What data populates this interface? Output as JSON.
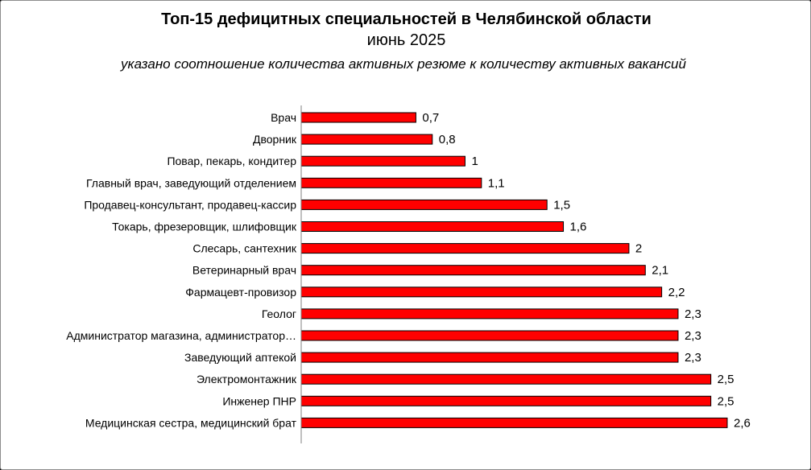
{
  "title": "Топ-15 дефицитных специальностей в Челябинской области",
  "subtitle": "июнь 2025",
  "note": "указано соотношение количества активных резюме к количеству активных вакансий",
  "colors": {
    "bar": "#ff0000",
    "bar_border": "#000000",
    "axis": "#808080"
  },
  "chart_data": {
    "type": "bar",
    "orientation": "horizontal",
    "title": "Топ-15 дефицитных специальностей в Челябинской области",
    "subtitle": "июнь 2025",
    "xlabel": "",
    "ylabel": "",
    "xlim": [
      0,
      2.6
    ],
    "grid": false,
    "legend": "none",
    "categories": [
      "Врач",
      "Дворник",
      "Повар, пекарь, кондитер",
      "Главный врач, заведующий отделением",
      "Продавец-консультант, продавец-кассир",
      "Токарь, фрезеровщик, шлифовщик",
      "Слесарь, сантехник",
      "Ветеринарный врач",
      "Фармацевт-провизор",
      "Геолог",
      "Администратор магазина, администратор…",
      "Заведующий аптекой",
      "Электромонтажник",
      "Инженер ПНР",
      "Медицинская сестра, медицинский брат"
    ],
    "values": [
      0.7,
      0.8,
      1,
      1.1,
      1.5,
      1.6,
      2,
      2.1,
      2.2,
      2.3,
      2.3,
      2.3,
      2.5,
      2.5,
      2.6
    ],
    "data_labels": [
      "0,7",
      "0,8",
      "1",
      "1,1",
      "1,5",
      "1,6",
      "2",
      "2,1",
      "2,2",
      "2,3",
      "2,3",
      "2,3",
      "2,5",
      "2,5",
      "2,6"
    ]
  }
}
